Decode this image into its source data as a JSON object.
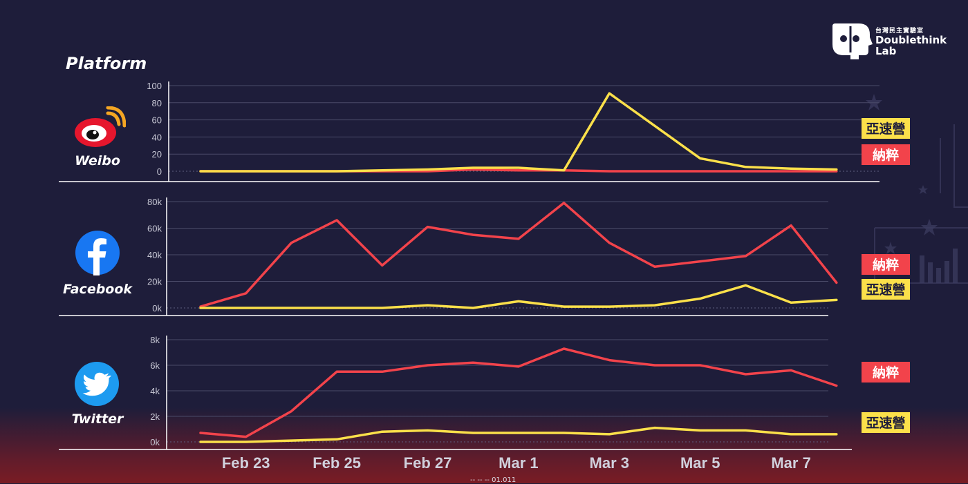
{
  "header": {
    "title": "Platform"
  },
  "brand": {
    "zh": "台灣民主實驗室",
    "name_line1": "Doublethink",
    "name_line2": "Lab"
  },
  "footer": {
    "partial_text": "-- -- -- 01.011"
  },
  "colors": {
    "background": "#1e1d3a",
    "red_series": "#f2434b",
    "yellow_series": "#fbe04a",
    "grid": "#4a4a68",
    "axis_text": "#c9c9d6"
  },
  "x_axis": {
    "ticks": [
      "Feb 23",
      "Feb 25",
      "Feb 27",
      "Mar 1",
      "Mar 3",
      "Mar 5",
      "Mar 7"
    ]
  },
  "chart_data": [
    {
      "type": "line",
      "platform": "Weibo",
      "icon": "weibo-icon",
      "x": [
        "Feb 22",
        "Feb 23",
        "Feb 24",
        "Feb 25",
        "Feb 26",
        "Feb 27",
        "Feb 28",
        "Mar 1",
        "Mar 2",
        "Mar 3",
        "Mar 4",
        "Mar 5",
        "Mar 6",
        "Mar 7",
        "Mar 8"
      ],
      "ylim": [
        0,
        100
      ],
      "yticks": [
        "0",
        "20",
        "40",
        "60",
        "80",
        "100"
      ],
      "series": [
        {
          "name": "納粹",
          "color": "#f2434b",
          "values": [
            0,
            0,
            0,
            0,
            0,
            0,
            2,
            1,
            1,
            0,
            0,
            0,
            0,
            0,
            0
          ]
        },
        {
          "name": "亞速營",
          "color": "#fbe04a",
          "values": [
            0,
            0,
            0,
            0,
            1,
            2,
            4,
            4,
            1,
            91,
            53,
            15,
            5,
            3,
            2
          ]
        }
      ],
      "legend_order": [
        "亞速營",
        "納粹"
      ]
    },
    {
      "type": "line",
      "platform": "Facebook",
      "icon": "facebook-icon",
      "x": [
        "Feb 22",
        "Feb 23",
        "Feb 24",
        "Feb 25",
        "Feb 26",
        "Feb 27",
        "Feb 28",
        "Mar 1",
        "Mar 2",
        "Mar 3",
        "Mar 4",
        "Mar 5",
        "Mar 6",
        "Mar 7",
        "Mar 8"
      ],
      "ylim": [
        0,
        80000
      ],
      "yticks": [
        "0k",
        "20k",
        "40k",
        "60k",
        "80k"
      ],
      "series": [
        {
          "name": "納粹",
          "color": "#f2434b",
          "values": [
            1000,
            11000,
            49000,
            66000,
            32000,
            61000,
            55000,
            52000,
            79000,
            49000,
            31000,
            35000,
            39000,
            62000,
            19000
          ]
        },
        {
          "name": "亞速營",
          "color": "#fbe04a",
          "values": [
            0,
            0,
            0,
            0,
            0,
            2000,
            0,
            5000,
            1000,
            1000,
            2000,
            7000,
            17000,
            4000,
            6000
          ]
        }
      ],
      "legend_order": [
        "納粹",
        "亞速營"
      ]
    },
    {
      "type": "line",
      "platform": "Twitter",
      "icon": "twitter-icon",
      "x": [
        "Feb 22",
        "Feb 23",
        "Feb 24",
        "Feb 25",
        "Feb 26",
        "Feb 27",
        "Feb 28",
        "Mar 1",
        "Mar 2",
        "Mar 3",
        "Mar 4",
        "Mar 5",
        "Mar 6",
        "Mar 7",
        "Mar 8"
      ],
      "ylim": [
        0,
        8000
      ],
      "yticks": [
        "0k",
        "2k",
        "4k",
        "6k",
        "8k"
      ],
      "series": [
        {
          "name": "納粹",
          "color": "#f2434b",
          "values": [
            700,
            400,
            2400,
            5500,
            5500,
            6000,
            6200,
            5900,
            7300,
            6400,
            6000,
            6000,
            5300,
            5600,
            4400
          ]
        },
        {
          "name": "亞速營",
          "color": "#fbe04a",
          "values": [
            0,
            0,
            100,
            200,
            800,
            900,
            700,
            700,
            700,
            600,
            1100,
            900,
            900,
            600,
            600
          ]
        }
      ],
      "legend_order": [
        "納粹",
        "亞速營"
      ]
    }
  ]
}
